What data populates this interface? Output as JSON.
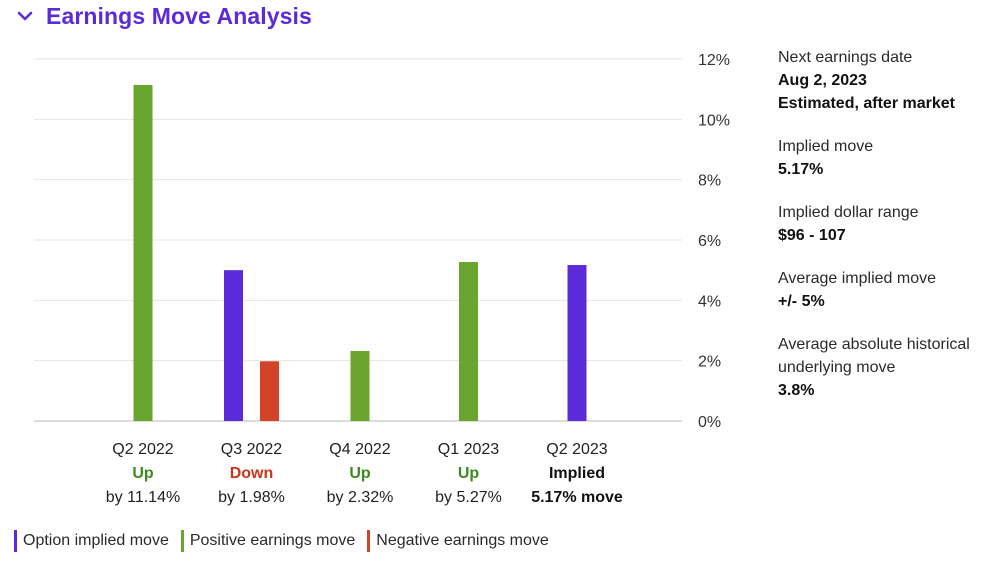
{
  "header": {
    "title": "Earnings Move Analysis",
    "toggle_icon": "chevron-down-icon"
  },
  "colors": {
    "accent": "#5b2bd9",
    "implied": "#5b2bd9",
    "positive": "#6aa62f",
    "negative": "#d24427",
    "up_text": "#3d8a1f",
    "down_text": "#c7361a"
  },
  "chart_data": {
    "type": "bar",
    "categories": [
      "Q2 2022",
      "Q3 2022",
      "Q4 2022",
      "Q1 2023",
      "Q2 2023"
    ],
    "series": [
      {
        "name": "Option implied move",
        "color": "#5b2bd9",
        "values": [
          null,
          5.0,
          null,
          null,
          5.17
        ]
      },
      {
        "name": "Positive earnings move",
        "color": "#6aa62f",
        "values": [
          11.14,
          null,
          2.32,
          5.27,
          null
        ]
      },
      {
        "name": "Negative earnings move",
        "color": "#d24427",
        "values": [
          null,
          1.98,
          null,
          null,
          null
        ]
      }
    ],
    "ylim": [
      0,
      12
    ],
    "yticks": [
      "0%",
      "2%",
      "4%",
      "6%",
      "8%",
      "10%",
      "12%"
    ],
    "grid": true,
    "legend": "bottom-left",
    "category_labels": [
      {
        "period": "Q2 2022",
        "direction": "Up",
        "detail": "by 11.14%",
        "kind": "up"
      },
      {
        "period": "Q3 2022",
        "direction": "Down",
        "detail": "by 1.98%",
        "kind": "down"
      },
      {
        "period": "Q4 2022",
        "direction": "Up",
        "detail": "by 2.32%",
        "kind": "up"
      },
      {
        "period": "Q1 2023",
        "direction": "Up",
        "detail": "by 5.27%",
        "kind": "up"
      },
      {
        "period": "Q2 2023",
        "direction": "Implied",
        "detail": "5.17% move",
        "kind": "implied"
      }
    ]
  },
  "sidebar": {
    "next_earnings": {
      "label": "Next earnings date",
      "date": "Aug 2, 2023",
      "note": "Estimated, after market"
    },
    "implied_move": {
      "label": "Implied move",
      "value": "5.17%"
    },
    "implied_range": {
      "label": "Implied dollar range",
      "value": "$96 - 107"
    },
    "avg_implied": {
      "label": "Average implied move",
      "value": "+/- 5%"
    },
    "avg_historical": {
      "label": "Average absolute historical underlying move",
      "value": "3.8%"
    }
  },
  "legend": {
    "items": [
      {
        "label": "Option implied move",
        "color": "#5b2bd9"
      },
      {
        "label": "Positive earnings move",
        "color": "#6aa62f"
      },
      {
        "label": "Negative earnings move",
        "color": "#d24427"
      }
    ]
  }
}
